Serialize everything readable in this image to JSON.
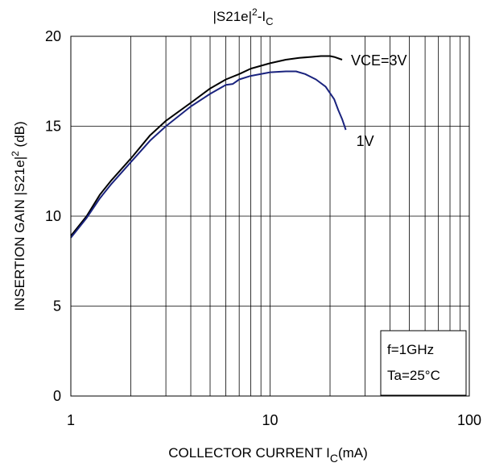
{
  "chart_data": {
    "type": "line",
    "title": {
      "main": "|S21e|",
      "sup": "2",
      "mid": "-I",
      "sub": "C"
    },
    "xlabel": {
      "pre": "COLLECTOR CURRENT I",
      "sub": "C",
      "post": "(mA)"
    },
    "ylabel": {
      "pre": "INSERTION GAIN |S21e|",
      "sup": "2",
      "post": " (dB)"
    },
    "x_scale": "log",
    "xlim": [
      1,
      100
    ],
    "ylim": [
      0,
      20
    ],
    "x_ticks": [
      1,
      10,
      100
    ],
    "x_tick_labels": [
      "1",
      "10",
      "100"
    ],
    "y_ticks": [
      0,
      5,
      10,
      15,
      20
    ],
    "y_tick_labels": [
      "0",
      "5",
      "10",
      "15",
      "20"
    ],
    "grid": true,
    "series": [
      {
        "name": "VCE=3V",
        "color": "#000000",
        "x": [
          1.0,
          1.2,
          1.4,
          1.6,
          2.0,
          2.5,
          3.0,
          4.0,
          5.0,
          6.0,
          7.0,
          8.0,
          10.0,
          12.0,
          14.0,
          16.0,
          18.0,
          20.0,
          21.0,
          23.0
        ],
        "y": [
          8.9,
          10.0,
          11.2,
          12.0,
          13.2,
          14.5,
          15.3,
          16.3,
          17.1,
          17.6,
          17.9,
          18.2,
          18.5,
          18.7,
          18.8,
          18.85,
          18.9,
          18.9,
          18.85,
          18.7
        ]
      },
      {
        "name": "1V",
        "color": "#1a237e",
        "x": [
          1.0,
          1.2,
          1.4,
          1.6,
          2.0,
          2.5,
          3.0,
          4.0,
          5.0,
          6.0,
          6.5,
          7.0,
          8.0,
          10.0,
          12.0,
          13.5,
          15.0,
          17.0,
          19.0,
          21.0,
          22.0,
          23.0,
          24.0
        ],
        "y": [
          8.8,
          9.9,
          11.0,
          11.8,
          13.0,
          14.2,
          15.0,
          16.1,
          16.8,
          17.3,
          17.35,
          17.6,
          17.8,
          18.0,
          18.05,
          18.05,
          17.9,
          17.6,
          17.2,
          16.5,
          15.9,
          15.4,
          14.8
        ]
      }
    ],
    "legend": {
      "position": "inline",
      "labels": [
        "VCE=3V",
        "1V"
      ]
    },
    "annotations": [
      "f=1GHz",
      "Ta=25°C"
    ]
  }
}
